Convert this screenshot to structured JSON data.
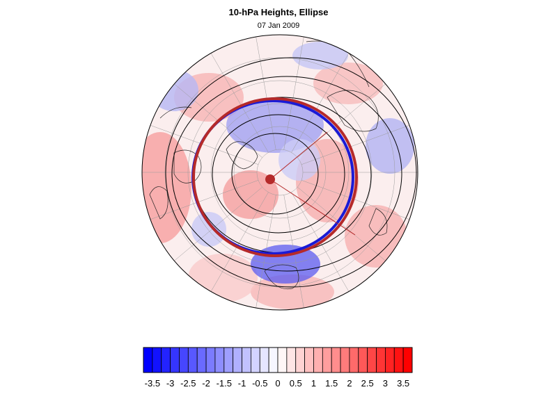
{
  "figure": {
    "title": "10-hPa Heights, Ellipse",
    "subtitle": "07 Jan 2009"
  },
  "colorbar": {
    "tick_labels": [
      "-3.5",
      "-3",
      "-2.5",
      "-2",
      "-1.5",
      "-1",
      "-0.5",
      "0",
      "0.5",
      "1",
      "1.5",
      "2",
      "2.5",
      "3",
      "3.5"
    ],
    "range": [
      -3.75,
      3.75
    ],
    "step": 0.25,
    "negative_color": "#0000ff",
    "positive_color": "#ff0000",
    "center_color": "#ffffff"
  },
  "map": {
    "projection": "north polar stereographic",
    "background_color": "#fdf0f0",
    "vortex_center_color": "#b52a2a",
    "ellipse_colors": [
      "#b52a2a",
      "#1a1ad6"
    ],
    "contour_color": "#000000"
  }
}
